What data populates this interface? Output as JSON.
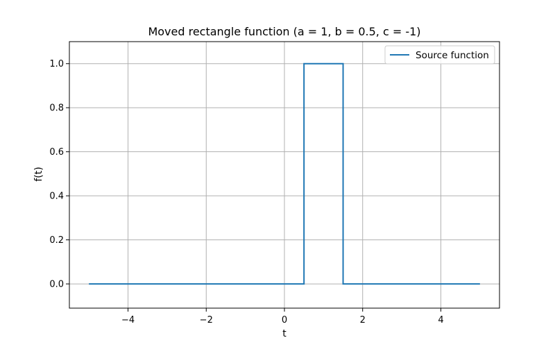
{
  "chart_data": {
    "type": "line",
    "title": "Moved rectangle function (a = 1, b = 0.5, c = -1)",
    "xlabel": "t",
    "ylabel": "f(t)",
    "xlim": [
      -5.5,
      5.5
    ],
    "ylim": [
      -0.11,
      1.1
    ],
    "xticks": [
      -4,
      -2,
      0,
      2,
      4
    ],
    "xtick_labels": [
      "−4",
      "−2",
      "0",
      "2",
      "4"
    ],
    "yticks": [
      0.0,
      0.2,
      0.4,
      0.6,
      0.8,
      1.0
    ],
    "ytick_labels": [
      "0.0",
      "0.2",
      "0.4",
      "0.6",
      "0.8",
      "1.0"
    ],
    "grid": true,
    "legend_position": "top-right",
    "series": [
      {
        "name": "Source function",
        "color": "#1f77b4",
        "x": [
          -5,
          0.5,
          0.5,
          1.5,
          1.5,
          5
        ],
        "y": [
          0,
          0,
          1,
          1,
          0,
          0
        ]
      }
    ]
  }
}
